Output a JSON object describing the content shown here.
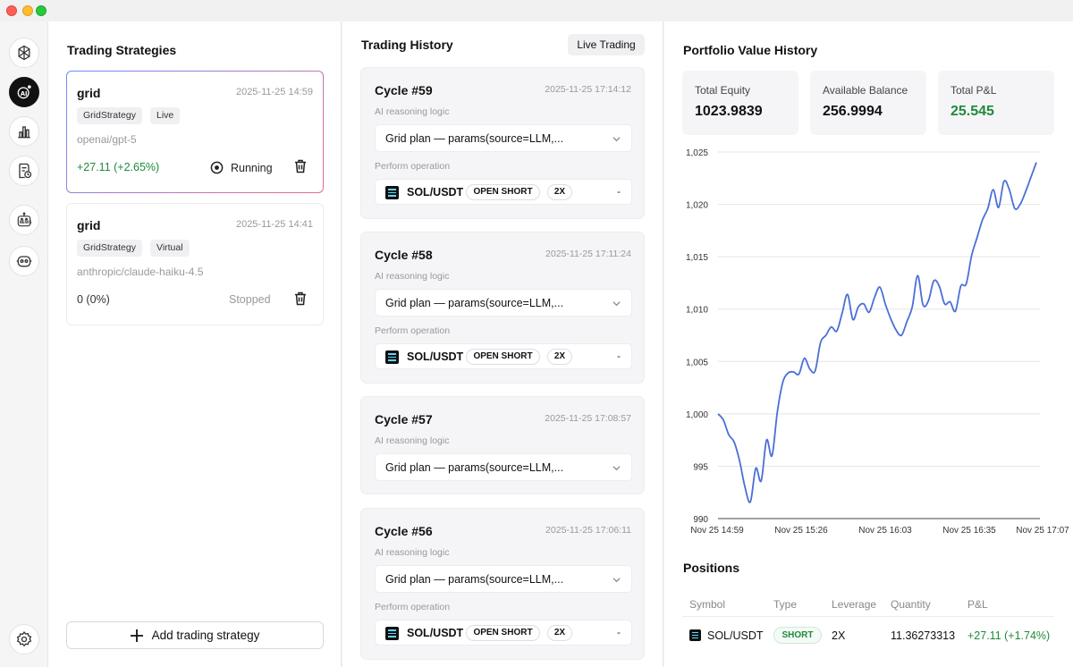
{
  "colors": {
    "accent_green": "#1f8a3b",
    "chart_line": "#4a6fd6"
  },
  "rail": {
    "icons": [
      "brain-icon",
      "ai-agent-icon",
      "bar-chart-icon",
      "receipt-clock-icon",
      "news-robot-icon",
      "robot-icon",
      "settings-icon"
    ]
  },
  "strategies": {
    "title": "Trading Strategies",
    "add_label": "Add trading strategy",
    "items": [
      {
        "name": "grid",
        "time": "2025-11-25 14:59",
        "class": "GridStrategy",
        "mode": "Live",
        "model": "openai/gpt-5",
        "pnl": "+27.11 (+2.65%)",
        "status": "Running"
      },
      {
        "name": "grid",
        "time": "2025-11-25 14:41",
        "class": "GridStrategy",
        "mode": "Virtual",
        "model": "anthropic/claude-haiku-4.5",
        "pnl": "0 (0%)",
        "status": "Stopped"
      }
    ]
  },
  "history": {
    "title": "Trading History",
    "live_label": "Live Trading",
    "reasoning_label": "AI reasoning logic",
    "operation_label": "Perform operation",
    "cycles": [
      {
        "title": "Cycle #59",
        "time": "2025-11-25 17:14:12",
        "plan": "Grid plan — params(source=LLM,...",
        "symbol": "SOL/USDT",
        "action": "OPEN SHORT",
        "leverage": "2X",
        "amount": "-"
      },
      {
        "title": "Cycle #58",
        "time": "2025-11-25 17:11:24",
        "plan": "Grid plan — params(source=LLM,...",
        "symbol": "SOL/USDT",
        "action": "OPEN SHORT",
        "leverage": "2X",
        "amount": "-"
      },
      {
        "title": "Cycle #57",
        "time": "2025-11-25 17:08:57",
        "plan": "Grid plan — params(source=LLM,..."
      },
      {
        "title": "Cycle #56",
        "time": "2025-11-25 17:06:11",
        "plan": "Grid plan — params(source=LLM,...",
        "symbol": "SOL/USDT",
        "action": "OPEN SHORT",
        "leverage": "2X",
        "amount": "-"
      }
    ]
  },
  "portfolio": {
    "title": "Portfolio Value History",
    "stats": [
      {
        "label": "Total Equity",
        "value": "1023.9839"
      },
      {
        "label": "Available Balance",
        "value": "256.9994"
      },
      {
        "label": "Total P&L",
        "value": "25.545"
      }
    ]
  },
  "chart_data": {
    "type": "line",
    "title": "Portfolio Value History",
    "xlabel": "",
    "ylabel": "",
    "ylim": [
      990,
      1025
    ],
    "yticks": [
      "1,025",
      "1,020",
      "1,015",
      "1,010",
      "1,005",
      "1,000",
      "995",
      "990"
    ],
    "ytick_values": [
      1025,
      1020,
      1015,
      1010,
      1005,
      1000,
      995,
      990
    ],
    "xticks": [
      "Nov 25 14:59",
      "Nov 25 15:26",
      "Nov 25 16:03",
      "Nov 25 16:35",
      "Nov 25 17:07"
    ],
    "series": [
      {
        "name": "Equity",
        "x": [
          0,
          1,
          2,
          3,
          4,
          5,
          6,
          7,
          8,
          9,
          10,
          11,
          12,
          13,
          14,
          15,
          16,
          17,
          18,
          19,
          20,
          21,
          22,
          23,
          24,
          25,
          26,
          27,
          28,
          29,
          30,
          31,
          32,
          33,
          34,
          35,
          36,
          37,
          38,
          39,
          40,
          41,
          42,
          43,
          44,
          45,
          46,
          47,
          48,
          49,
          50,
          51,
          52,
          53,
          54,
          55,
          56,
          57,
          58,
          59
        ],
        "values": [
          1000.0,
          999.4,
          998.0,
          997.3,
          995.5,
          993.0,
          991.6,
          994.8,
          993.6,
          997.5,
          996.0,
          1000.2,
          1003.0,
          1003.9,
          1004.0,
          1003.8,
          1005.3,
          1004.3,
          1004.1,
          1006.8,
          1007.5,
          1008.3,
          1007.9,
          1009.6,
          1011.4,
          1009.0,
          1010.2,
          1010.5,
          1009.7,
          1011.1,
          1012.1,
          1010.5,
          1009.1,
          1008.0,
          1007.5,
          1008.8,
          1010.2,
          1013.2,
          1010.4,
          1010.8,
          1012.7,
          1012.2,
          1010.5,
          1010.7,
          1009.8,
          1012.2,
          1012.4,
          1015.1,
          1016.8,
          1018.5,
          1019.6,
          1021.4,
          1019.7,
          1022.2,
          1021.4,
          1019.6,
          1020.0,
          1021.2,
          1022.6,
          1024.0
        ]
      }
    ]
  },
  "positions": {
    "title": "Positions",
    "headers": [
      "Symbol",
      "Type",
      "Leverage",
      "Quantity",
      "P&L"
    ],
    "rows": [
      {
        "symbol": "SOL/USDT",
        "type": "SHORT",
        "leverage": "2X",
        "quantity": "11.36273313",
        "pnl": "+27.11 (+1.74%)"
      }
    ]
  }
}
